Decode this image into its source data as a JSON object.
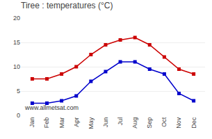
{
  "chart_data": {
    "type": "line",
    "title": "Tiree : temperatures (°C)",
    "categories": [
      "Jan",
      "Feb",
      "Mar",
      "Apr",
      "May",
      "Jun",
      "Jul",
      "Aug",
      "Sep",
      "Oct",
      "Nov",
      "Dec"
    ],
    "series": [
      {
        "color": "#cc0000",
        "marker": "square",
        "values": [
          7.5,
          7.5,
          8.5,
          10.0,
          12.5,
          14.5,
          15.5,
          16.0,
          14.5,
          12.0,
          9.5,
          8.5
        ]
      },
      {
        "color": "#0000cc",
        "marker": "square",
        "values": [
          2.5,
          2.5,
          3.0,
          4.0,
          7.0,
          9.0,
          11.0,
          11.0,
          9.5,
          8.5,
          4.5,
          3.0
        ]
      }
    ],
    "ylim": [
      0,
      20
    ],
    "yticks": [
      0,
      5,
      10,
      15,
      20
    ],
    "grid": true,
    "annotations": [
      "www.allmetsat.com"
    ]
  }
}
